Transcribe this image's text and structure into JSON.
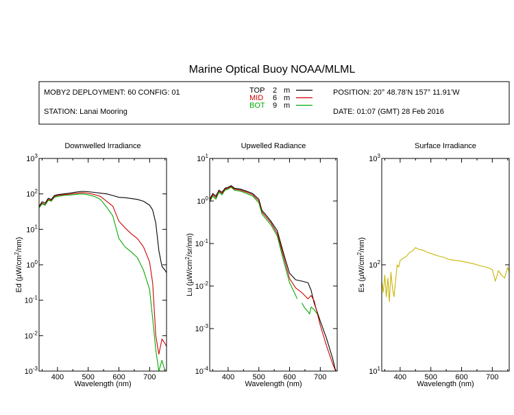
{
  "title": "Marine Optical Buoy NOAA/MLML",
  "info": {
    "deployment": "MOBY2 DEPLOYMENT: 60 CONFIG: 01",
    "station": "STATION: Lanai Mooring",
    "position": "POSITION: 20° 48.78’N   157° 11.91’W",
    "date": "DATE: 01:07 (GMT) 28 Feb 2016"
  },
  "legend": [
    {
      "name": "TOP",
      "depth": "2",
      "unit": "m",
      "color": "#000000"
    },
    {
      "name": "MID",
      "depth": "6",
      "unit": "m",
      "color": "#cc0000"
    },
    {
      "name": "BOT",
      "depth": "9",
      "unit": "m",
      "color": "#00aa00"
    }
  ],
  "colors": {
    "surface": "#c8b400"
  },
  "chart_data": [
    {
      "type": "line",
      "title": "Downwelled Irradiance",
      "xlabel": "Wavelength (nm)",
      "ylabel": "Ed  (µW/cm²/nm)",
      "ylabel_parts": [
        "Ed  (µW/cm",
        "2",
        "/nm)"
      ],
      "xlim": [
        340,
        755
      ],
      "ylim": [
        0.001,
        1000
      ],
      "yscale": "log",
      "xticks": [
        400,
        500,
        600,
        700
      ],
      "yticks": [
        {
          "base": "10",
          "exp": "3"
        },
        {
          "base": "10",
          "exp": "2"
        },
        {
          "base": "10",
          "exp": "1"
        },
        {
          "base": "10",
          "exp": "0"
        },
        {
          "base": "10",
          "exp": "-1"
        },
        {
          "base": "10",
          "exp": "-2"
        },
        {
          "base": "10",
          "exp": "-3"
        }
      ],
      "ytick_values": [
        1000,
        100,
        10,
        1,
        0.1,
        0.01,
        0.001
      ],
      "series": [
        {
          "name": "TOP",
          "x": [
            340,
            350,
            360,
            370,
            380,
            390,
            400,
            420,
            440,
            460,
            480,
            500,
            520,
            540,
            560,
            580,
            600,
            620,
            640,
            660,
            680,
            700,
            710,
            720,
            730,
            740,
            750,
            755
          ],
          "y": [
            45,
            60,
            55,
            75,
            70,
            90,
            95,
            100,
            105,
            112,
            118,
            115,
            110,
            105,
            100,
            90,
            80,
            78,
            74,
            70,
            62,
            48,
            35,
            15,
            2.5,
            0.9,
            0.7,
            0.6
          ]
        },
        {
          "name": "MID",
          "x": [
            340,
            350,
            360,
            370,
            380,
            390,
            400,
            420,
            440,
            460,
            480,
            500,
            520,
            540,
            560,
            580,
            600,
            620,
            640,
            660,
            680,
            700,
            710,
            720,
            730,
            740,
            750,
            755
          ],
          "y": [
            42,
            55,
            50,
            70,
            65,
            85,
            90,
            95,
            98,
            104,
            108,
            104,
            96,
            85,
            62,
            45,
            17,
            11,
            7.5,
            5.5,
            3.2,
            1.2,
            0.3,
            0.01,
            0.003,
            0.008,
            0.006,
            0.005
          ]
        },
        {
          "name": "BOT",
          "x": [
            340,
            350,
            360,
            370,
            380,
            390,
            400,
            420,
            440,
            460,
            480,
            500,
            520,
            540,
            560,
            580,
            600,
            620,
            640,
            660,
            680,
            700,
            710,
            720,
            730,
            740,
            750
          ],
          "y": [
            40,
            52,
            48,
            66,
            62,
            80,
            85,
            90,
            92,
            97,
            100,
            94,
            85,
            70,
            42,
            24,
            5.5,
            3.2,
            2.3,
            1.6,
            0.7,
            0.2,
            0.03,
            0.004,
            0.001,
            0.002,
            0.001
          ]
        }
      ]
    },
    {
      "type": "line",
      "title": "Upwelled Radiance",
      "xlabel": "Wavelength (nm)",
      "ylabel": "Lu  (µW/cm²/sr/nm)",
      "ylabel_parts": [
        "Lu  (µW/cm",
        "2",
        "/sr/nm)"
      ],
      "xlim": [
        340,
        755
      ],
      "ylim": [
        0.0001,
        10
      ],
      "yscale": "log",
      "xticks": [
        400,
        500,
        600,
        700
      ],
      "yticks": [
        {
          "base": "10",
          "exp": "1"
        },
        {
          "base": "10",
          "exp": "0"
        },
        {
          "base": "10",
          "exp": "-1"
        },
        {
          "base": "10",
          "exp": "-2"
        },
        {
          "base": "10",
          "exp": "-3"
        },
        {
          "base": "10",
          "exp": "-4"
        }
      ],
      "ytick_values": [
        10,
        1,
        0.1,
        0.01,
        0.001,
        0.0001
      ],
      "series": [
        {
          "name": "TOP",
          "x": [
            340,
            350,
            360,
            370,
            380,
            390,
            400,
            410,
            420,
            440,
            460,
            480,
            500,
            510,
            520,
            540,
            560,
            580,
            600,
            620,
            640,
            660,
            670,
            680,
            700,
            720,
            740,
            750,
            755
          ],
          "y": [
            1.1,
            1.5,
            1.3,
            1.8,
            1.6,
            2.0,
            2.1,
            2.3,
            2.0,
            1.9,
            1.7,
            1.5,
            1.1,
            0.6,
            0.5,
            0.33,
            0.2,
            0.06,
            0.02,
            0.014,
            0.013,
            0.012,
            0.008,
            0.004,
            0.0015,
            0.0006,
            0.0002,
            0.0001,
            0.0001
          ]
        },
        {
          "name": "MID",
          "x": [
            340,
            350,
            360,
            370,
            380,
            390,
            400,
            410,
            420,
            440,
            460,
            480,
            500,
            510,
            520,
            540,
            560,
            580,
            600,
            620,
            640,
            660,
            670,
            680,
            700,
            720,
            740,
            750,
            755
          ],
          "y": [
            1.0,
            1.4,
            1.2,
            1.7,
            1.5,
            1.9,
            2.0,
            2.2,
            1.9,
            1.8,
            1.6,
            1.4,
            1.0,
            0.55,
            0.45,
            0.3,
            0.17,
            0.05,
            0.015,
            0.009,
            0.007,
            0.005,
            0.006,
            0.0045,
            0.0012,
            0.0004,
            0.00015,
            0.0001,
            0.0001
          ]
        },
        {
          "name": "BOT",
          "x": [
            340,
            350,
            360,
            370,
            380,
            390,
            400,
            410,
            420,
            440,
            460,
            480,
            500,
            510,
            520,
            540,
            560,
            580,
            600,
            620,
            625
          ],
          "y": [
            0.95,
            1.3,
            1.1,
            1.6,
            1.4,
            1.8,
            1.9,
            2.1,
            1.8,
            1.7,
            1.5,
            1.3,
            0.9,
            0.5,
            0.4,
            0.27,
            0.15,
            0.04,
            0.012,
            0.006,
            0.005
          ]
        },
        {
          "name": "BOT",
          "x": [
            640,
            650,
            660,
            665,
            670,
            680,
            690
          ],
          "y": [
            0.004,
            0.003,
            0.0025,
            0.0022,
            0.0032,
            0.0028,
            0.0022
          ]
        }
      ]
    },
    {
      "type": "line",
      "title": "Surface Irradiance",
      "xlabel": "Wavelength (nm)",
      "ylabel": "Es  (µW/cm²/nm)",
      "ylabel_parts": [
        "Es  (µW/cm",
        "2",
        "/nm)"
      ],
      "xlim": [
        340,
        755
      ],
      "ylim": [
        10,
        1000
      ],
      "yscale": "log",
      "xticks": [
        400,
        500,
        600,
        700
      ],
      "yticks": [
        {
          "base": "10",
          "exp": "3"
        },
        {
          "base": "10",
          "exp": "2"
        },
        {
          "base": "10",
          "exp": "1"
        }
      ],
      "ytick_values": [
        1000,
        100,
        10
      ],
      "series": [
        {
          "name": "Es",
          "x": [
            340,
            345,
            350,
            355,
            360,
            365,
            370,
            375,
            380,
            385,
            390,
            395,
            400,
            410,
            420,
            430,
            440,
            450,
            460,
            470,
            480,
            490,
            500,
            520,
            540,
            560,
            580,
            600,
            620,
            640,
            660,
            680,
            690,
            700,
            710,
            720,
            730,
            740,
            750,
            755
          ],
          "y": [
            70,
            55,
            80,
            50,
            75,
            45,
            85,
            60,
            50,
            70,
            100,
            95,
            110,
            115,
            120,
            130,
            135,
            145,
            140,
            138,
            135,
            130,
            128,
            122,
            118,
            112,
            110,
            108,
            105,
            102,
            98,
            95,
            93,
            90,
            70,
            88,
            80,
            75,
            95,
            85
          ]
        }
      ]
    }
  ]
}
